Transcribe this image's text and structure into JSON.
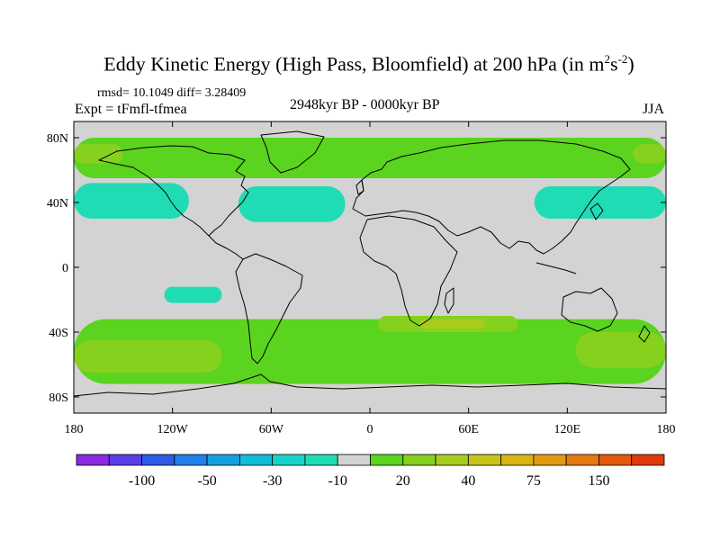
{
  "chart_data": {
    "type": "heatmap",
    "title_main": "Eddy Kinetic Energy (High Pass, Bloomfield) at 200 hPa (in m",
    "title_sup1": "2",
    "title_mid": "s",
    "title_sup2": "-2",
    "title_end": ")",
    "stats": "rmsd= 10.1049 diff= 3.28409",
    "expt": "Expt = tFmfl-tfmea",
    "period": "2948kyr BP - 0000kyr BP",
    "season": "JJA",
    "x_range": [
      -180,
      180
    ],
    "y_range": [
      -90,
      90
    ],
    "x_ticks": [
      {
        "value": -180,
        "label": "180"
      },
      {
        "value": -120,
        "label": "120W"
      },
      {
        "value": -60,
        "label": "60W"
      },
      {
        "value": 0,
        "label": "0"
      },
      {
        "value": 60,
        "label": "60E"
      },
      {
        "value": 120,
        "label": "120E"
      },
      {
        "value": 180,
        "label": "180"
      }
    ],
    "y_ticks": [
      {
        "value": 80,
        "label": "80N"
      },
      {
        "value": 40,
        "label": "40N"
      },
      {
        "value": 0,
        "label": "0"
      },
      {
        "value": -40,
        "label": "40S"
      },
      {
        "value": -80,
        "label": "80S"
      }
    ],
    "colorbar_colors": [
      "#8a2be2",
      "#5a3ee6",
      "#2d5be8",
      "#1e80e8",
      "#14a0e0",
      "#10bcd8",
      "#18d4c8",
      "#20dcb4",
      "#d3d3d3",
      "#5ad41e",
      "#86d01e",
      "#a8cc1e",
      "#c8c41a",
      "#d8b414",
      "#e09a14",
      "#e47a10",
      "#e4580c",
      "#e03a0c"
    ],
    "colorbar_labels": [
      {
        "index": 1,
        "label": "-100"
      },
      {
        "index": 3,
        "label": "-50"
      },
      {
        "index": 5,
        "label": "-30"
      },
      {
        "index": 7,
        "label": "-10"
      },
      {
        "index": 9,
        "label": "20"
      },
      {
        "index": 11,
        "label": "40"
      },
      {
        "index": 13,
        "label": "75"
      },
      {
        "index": 15,
        "label": "150"
      }
    ],
    "fields": [
      {
        "region": "arctic-north-band",
        "lon": [
          -180,
          180
        ],
        "lat": [
          55,
          80
        ],
        "level": "10 to 20",
        "color": "#5ad41e"
      },
      {
        "region": "north-pacific-west",
        "lon": [
          -180,
          -150
        ],
        "lat": [
          64,
          76
        ],
        "level": "20 to 30",
        "color": "#86d01e"
      },
      {
        "region": "north-pacific-east",
        "lon": [
          160,
          180
        ],
        "lat": [
          64,
          76
        ],
        "level": "20 to 30",
        "color": "#86d01e"
      },
      {
        "region": "north-pacific-neg",
        "lon": [
          -180,
          -110
        ],
        "lat": [
          30,
          52
        ],
        "level": "-10 to -20",
        "color": "#20dcb4"
      },
      {
        "region": "north-atlantic-neg",
        "lon": [
          -80,
          -15
        ],
        "lat": [
          28,
          50
        ],
        "level": "-10 to -20",
        "color": "#20dcb4"
      },
      {
        "region": "east-asia-neg",
        "lon": [
          100,
          180
        ],
        "lat": [
          30,
          50
        ],
        "level": "-10 to -20",
        "color": "#20dcb4"
      },
      {
        "region": "south-pacific-subtropic-neg",
        "lon": [
          -125,
          -90
        ],
        "lat": [
          -22,
          -12
        ],
        "level": "-10 to -20",
        "color": "#20dcb4"
      },
      {
        "region": "southern-ocean-band",
        "lon": [
          -180,
          180
        ],
        "lat": [
          -72,
          -32
        ],
        "level": "10 to 20",
        "color": "#5ad41e"
      },
      {
        "region": "south-pacific-max",
        "lon": [
          -180,
          -90
        ],
        "lat": [
          -65,
          -45
        ],
        "level": "20 to 30",
        "color": "#86d01e"
      },
      {
        "region": "south-indian-max",
        "lon": [
          5,
          90
        ],
        "lat": [
          -40,
          -30
        ],
        "level": "20 to 30",
        "color": "#86d01e"
      },
      {
        "region": "south-indian-peak",
        "lon": [
          30,
          70
        ],
        "lat": [
          -38,
          -32
        ],
        "level": "30 to 40",
        "color": "#a8cc1e"
      },
      {
        "region": "south-pacific-east-max",
        "lon": [
          125,
          180
        ],
        "lat": [
          -62,
          -40
        ],
        "level": "20 to 30",
        "color": "#86d01e"
      }
    ]
  }
}
